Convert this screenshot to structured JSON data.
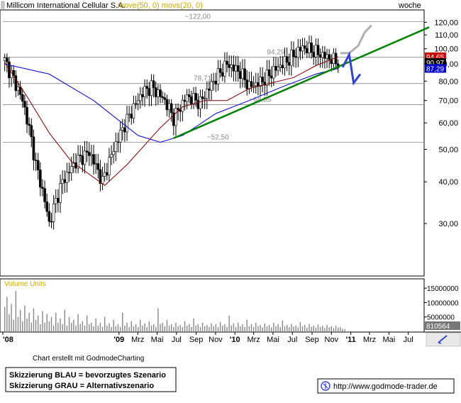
{
  "chart_data": [
    {
      "type": "candlestick",
      "title": "Millicom International Cellular S.A.",
      "indicators_label": "move(50, 0) movs(20, 0)",
      "timeframe_label": "woche",
      "yscale": "log",
      "ylim": [
        21,
        130
      ],
      "y_ticks": [
        "120,00",
        "110,00",
        "100,00",
        "90,00",
        "80,00",
        "70,00",
        "60,00",
        "50,00",
        "40,00",
        "30,00"
      ],
      "x_ticks": [
        "'08",
        "'09",
        "Mrz",
        "Mai",
        "Jul",
        "Sep",
        "Nov",
        "'10",
        "Mrz",
        "Mai",
        "Jul",
        "Sep",
        "Nov",
        "'11",
        "Mrz",
        "Mai",
        "Jul"
      ],
      "price_tags": [
        {
          "value": "94,65",
          "color": "#cc0000",
          "text_color": "#ffffff"
        },
        {
          "value": "90,97",
          "color": "#000000",
          "text_color": "#ffffff"
        },
        {
          "value": "87,29",
          "color": "#0000cc",
          "text_color": "#ffffff"
        }
      ],
      "annotations": [
        {
          "text": "~122,00",
          "x": "2009-07-27",
          "y": 120.5
        },
        {
          "text": "94,29",
          "x": "2010-04-12",
          "y": 94.29
        },
        {
          "text": "78,71",
          "x": "2009-08-24",
          "y": 78.71
        },
        {
          "text": "~68,05",
          "x": "2010-02-15",
          "y": 68.05
        },
        {
          "text": "~52,50",
          "x": "2009-10-05",
          "y": 52.5
        }
      ],
      "horizontal_lines": [
        120.5,
        94.29,
        78.71,
        68.05,
        52.5
      ],
      "trendline": {
        "color": "#008000",
        "from": {
          "x": "2009-06-22",
          "y": 54.0
        },
        "to": {
          "x": "2011-09-05",
          "y": 116.0
        }
      },
      "scenario_blue": {
        "color": "#3344cc",
        "points": [
          {
            "x": "2010-12-06",
            "y": 88.0
          },
          {
            "x": "2010-12-27",
            "y": 96.0
          },
          {
            "x": "2011-01-10",
            "y": 79.0
          },
          {
            "x": "2011-01-31",
            "y": 84.0
          }
        ]
      },
      "scenario_gray": {
        "color": "#b0b0b0",
        "points": [
          {
            "x": "2010-11-29",
            "y": 97.0
          },
          {
            "x": "2010-12-27",
            "y": 97.0
          },
          {
            "x": "2011-01-24",
            "y": 102.0
          },
          {
            "x": "2011-02-14",
            "y": 112.0
          },
          {
            "x": "2011-03-07",
            "y": 117.5
          }
        ]
      },
      "series": [
        {
          "name": "move(50, 0)",
          "color": "#0000cc",
          "points": [
            [
              0,
              90.0
            ],
            [
              20,
              84.0
            ],
            [
              40,
              70.0
            ],
            [
              60,
              55.0
            ],
            [
              70,
              52.5
            ],
            [
              80,
              55.0
            ],
            [
              95,
              64.0
            ],
            [
              110,
              70.0
            ],
            [
              125,
              77.0
            ],
            [
              140,
              84.0
            ],
            [
              150,
              87.3
            ]
          ]
        },
        {
          "name": "movs(20, 0)",
          "color": "#800000",
          "points": [
            [
              0,
              91.0
            ],
            [
              10,
              72.0
            ],
            [
              20,
              56.0
            ],
            [
              30,
              46.0
            ],
            [
              45,
              39.0
            ],
            [
              55,
              45.0
            ],
            [
              70,
              58.0
            ],
            [
              80,
              67.0
            ],
            [
              90,
              70.0
            ],
            [
              100,
              70.0
            ],
            [
              110,
              76.0
            ],
            [
              120,
              79.0
            ],
            [
              130,
              82.0
            ],
            [
              140,
              89.0
            ],
            [
              150,
              94.6
            ]
          ]
        }
      ],
      "ohlc_anchor_closes": [
        [
          0,
          92.0
        ],
        [
          8,
          70.0
        ],
        [
          14,
          45.0
        ],
        [
          20,
          30.0
        ],
        [
          26,
          40.0
        ],
        [
          32,
          46.0
        ],
        [
          38,
          49.0
        ],
        [
          44,
          40.0
        ],
        [
          50,
          52.0
        ],
        [
          56,
          63.0
        ],
        [
          62,
          74.0
        ],
        [
          66,
          77.0
        ],
        [
          72,
          70.0
        ],
        [
          76,
          62.0
        ],
        [
          82,
          72.0
        ],
        [
          88,
          69.0
        ],
        [
          94,
          80.0
        ],
        [
          100,
          90.0
        ],
        [
          106,
          85.0
        ],
        [
          110,
          77.0
        ],
        [
          116,
          80.0
        ],
        [
          122,
          87.0
        ],
        [
          128,
          93.0
        ],
        [
          134,
          101.0
        ],
        [
          138,
          99.0
        ],
        [
          144,
          95.0
        ],
        [
          150,
          91.0
        ]
      ],
      "volume": {
        "label": "Volume Units",
        "y_ticks": [
          "15000000",
          "10000000",
          "5000000"
        ],
        "ylim": [
          0,
          18000000
        ],
        "last_value": "810564",
        "values": [
          8500000,
          12000000,
          6000000,
          9500000,
          4000000,
          14000000,
          5000000,
          7500000,
          3500000,
          9000000,
          4500000,
          6500000,
          3000000,
          8000000,
          4000000,
          5500000,
          2500000,
          7000000,
          3000000,
          6000000,
          3500000,
          5000000,
          2000000,
          6500000,
          3000000,
          4500000,
          2500000,
          7500000,
          2000000,
          5000000,
          3000000,
          4000000,
          2000000,
          6000000,
          2500000,
          3500000,
          2000000,
          5500000,
          2500000,
          3000000,
          1800000,
          4500000,
          2000000,
          3000000,
          1500000,
          5000000,
          2000000,
          2800000,
          1500000,
          4000000,
          1800000,
          2500000,
          1500000,
          6500000,
          2000000,
          3000000,
          1500000,
          3500000,
          1800000,
          2500000,
          1500000,
          4000000,
          2000000,
          2800000,
          1500000,
          3500000,
          2000000,
          2500000,
          1500000,
          8000000,
          2500000,
          3000000,
          1800000,
          4000000,
          2000000,
          2500000,
          1500000,
          3000000,
          1800000,
          2200000,
          1500000,
          3500000,
          2000000,
          2500000,
          1500000,
          4500000,
          2000000,
          2500000,
          1500000,
          3000000,
          1800000,
          2200000,
          1500000,
          2800000,
          1800000,
          2500000,
          1500000,
          3200000,
          2000000,
          2500000,
          1500000,
          5500000,
          2000000,
          2800000,
          1500000,
          3000000,
          1800000,
          2500000,
          1500000,
          4000000,
          1800000,
          2500000,
          1500000,
          3000000,
          1800000,
          2200000,
          1400000,
          2800000,
          1800000,
          2200000,
          1400000,
          3000000,
          1800000,
          2500000,
          1500000,
          3800000,
          1800000,
          2200000,
          1400000,
          2600000,
          1700000,
          2000000,
          1400000,
          3200000,
          1700000,
          2200000,
          1300000,
          2600000,
          1600000,
          2000000,
          1300000,
          2400000,
          1500000,
          1900000,
          1200000,
          2200000,
          1400000,
          1800000,
          1100000,
          2000000,
          1300000,
          1500000,
          900000,
          810564
        ]
      }
    }
  ],
  "footer": {
    "credit": "Chart erstellt mit GodmodeCharting",
    "legend_blue": "Skizzierung BLAU = bevorzugtes Szenario",
    "legend_gray": "Skizzierung GRAU = Alternativszenario",
    "website": "http://www.godmode-trader.de"
  },
  "icons": {
    "corner_tool": "pen-icon",
    "site_logo": "godmode-logo-icon"
  },
  "colors": {
    "frame": "#000000",
    "trendline": "#008000",
    "scenario_blue": "#3344cc",
    "scenario_gray": "#b0b0b0",
    "ma50": "#0000cc",
    "ma20": "#800000",
    "panel_label": "#ccaa00"
  }
}
